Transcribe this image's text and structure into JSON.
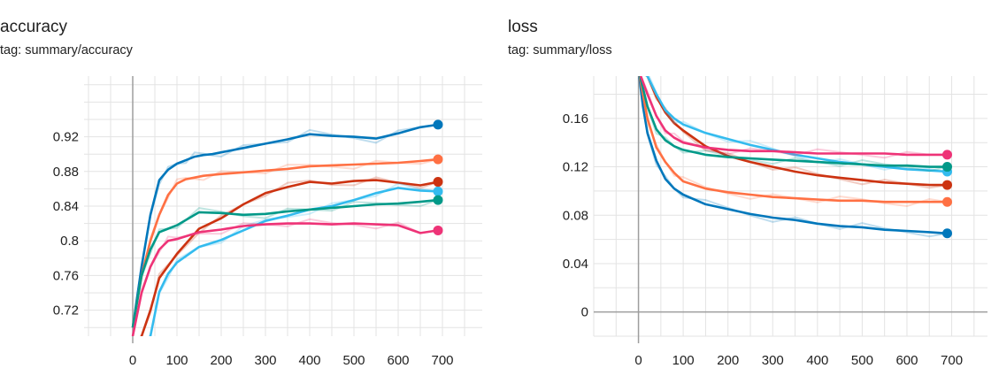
{
  "panels": {
    "accuracy": {
      "title": "accuracy",
      "tag": "tag: summary/accuracy"
    },
    "loss": {
      "title": "loss",
      "tag": "tag: summary/loss"
    }
  },
  "colors": {
    "grid": "#e3e3e3",
    "axis": "#9e9e9e",
    "text": "#212121"
  },
  "chart_data": [
    {
      "type": "line",
      "title": "accuracy",
      "xlim": [
        -110,
        790
      ],
      "ylim": [
        0.69,
        0.99
      ],
      "x_ticks": [
        0,
        100,
        200,
        300,
        400,
        500,
        600,
        700
      ],
      "y_ticks": [
        0.72,
        0.76,
        0.8,
        0.84,
        0.88,
        0.92
      ],
      "y_tick_labels": [
        "0.72",
        "0.76",
        "0.8",
        "0.84",
        "0.88",
        "0.92"
      ],
      "grid": true,
      "series": [
        {
          "color": "#0077bb",
          "x": [
            0,
            20,
            40,
            60,
            80,
            100,
            120,
            140,
            160,
            180,
            200,
            250,
            300,
            350,
            400,
            450,
            500,
            550,
            600,
            650,
            690
          ],
          "y": [
            0.7,
            0.77,
            0.83,
            0.87,
            0.882,
            0.889,
            0.893,
            0.897,
            0.899,
            0.9,
            0.902,
            0.907,
            0.912,
            0.917,
            0.923,
            0.921,
            0.92,
            0.918,
            0.924,
            0.931,
            0.934
          ]
        },
        {
          "color": "#ff7043",
          "x": [
            0,
            20,
            40,
            60,
            80,
            100,
            120,
            140,
            160,
            200,
            250,
            300,
            350,
            400,
            450,
            500,
            550,
            600,
            650,
            690
          ],
          "y": [
            0.7,
            0.76,
            0.8,
            0.83,
            0.853,
            0.866,
            0.871,
            0.873,
            0.875,
            0.877,
            0.879,
            0.881,
            0.883,
            0.886,
            0.887,
            0.888,
            0.889,
            0.89,
            0.892,
            0.894
          ]
        },
        {
          "color": "#cc3311",
          "x": [
            0,
            20,
            40,
            60,
            80,
            100,
            150,
            200,
            250,
            300,
            350,
            400,
            450,
            500,
            550,
            600,
            650,
            690
          ],
          "y": [
            0.68,
            0.69,
            0.72,
            0.757,
            0.771,
            0.785,
            0.814,
            0.826,
            0.842,
            0.855,
            0.862,
            0.868,
            0.866,
            0.869,
            0.87,
            0.867,
            0.864,
            0.868
          ]
        },
        {
          "color": "#33bbee",
          "x": [
            0,
            20,
            40,
            60,
            80,
            100,
            150,
            200,
            250,
            300,
            350,
            400,
            450,
            500,
            550,
            600,
            650,
            690
          ],
          "y": [
            0.66,
            0.67,
            0.69,
            0.741,
            0.762,
            0.775,
            0.793,
            0.801,
            0.812,
            0.823,
            0.829,
            0.836,
            0.84,
            0.847,
            0.855,
            0.861,
            0.858,
            0.857
          ]
        },
        {
          "color": "#009988",
          "x": [
            0,
            20,
            40,
            60,
            80,
            100,
            150,
            200,
            250,
            300,
            350,
            400,
            450,
            500,
            550,
            600,
            650,
            690
          ],
          "y": [
            0.7,
            0.76,
            0.79,
            0.81,
            0.814,
            0.818,
            0.833,
            0.832,
            0.83,
            0.831,
            0.834,
            0.836,
            0.838,
            0.84,
            0.842,
            0.843,
            0.845,
            0.847
          ]
        },
        {
          "color": "#ee3377",
          "x": [
            0,
            20,
            40,
            60,
            80,
            100,
            150,
            200,
            250,
            300,
            350,
            400,
            450,
            500,
            550,
            600,
            650,
            690
          ],
          "y": [
            0.69,
            0.74,
            0.77,
            0.79,
            0.8,
            0.802,
            0.81,
            0.813,
            0.817,
            0.819,
            0.82,
            0.82,
            0.819,
            0.82,
            0.819,
            0.818,
            0.809,
            0.812
          ]
        }
      ]
    },
    {
      "type": "line",
      "title": "loss",
      "xlim": [
        -100,
        780
      ],
      "ylim": [
        -0.02,
        0.195
      ],
      "x_ticks": [
        0,
        100,
        200,
        300,
        400,
        500,
        600,
        700
      ],
      "y_ticks": [
        0,
        0.04,
        0.08,
        0.12,
        0.16
      ],
      "y_tick_labels": [
        "0",
        "0.04",
        "0.08",
        "0.12",
        "0.16"
      ],
      "grid": true,
      "series": [
        {
          "color": "#0077bb",
          "x": [
            0,
            10,
            20,
            40,
            60,
            80,
            100,
            150,
            200,
            250,
            300,
            350,
            400,
            450,
            500,
            550,
            600,
            650,
            690
          ],
          "y": [
            0.2,
            0.17,
            0.148,
            0.125,
            0.11,
            0.102,
            0.097,
            0.089,
            0.085,
            0.081,
            0.078,
            0.076,
            0.073,
            0.071,
            0.07,
            0.068,
            0.067,
            0.066,
            0.065
          ]
        },
        {
          "color": "#ff7043",
          "x": [
            0,
            20,
            40,
            60,
            80,
            100,
            150,
            200,
            250,
            300,
            350,
            400,
            450,
            500,
            550,
            600,
            650,
            690
          ],
          "y": [
            0.2,
            0.16,
            0.136,
            0.124,
            0.115,
            0.108,
            0.102,
            0.099,
            0.097,
            0.095,
            0.094,
            0.093,
            0.092,
            0.092,
            0.091,
            0.091,
            0.091,
            0.091
          ]
        },
        {
          "color": "#cc3311",
          "x": [
            0,
            20,
            40,
            60,
            80,
            100,
            150,
            200,
            250,
            300,
            350,
            400,
            450,
            500,
            550,
            600,
            650,
            690
          ],
          "y": [
            0.2,
            0.195,
            0.178,
            0.165,
            0.156,
            0.15,
            0.137,
            0.129,
            0.124,
            0.12,
            0.116,
            0.113,
            0.111,
            0.109,
            0.107,
            0.106,
            0.105,
            0.105
          ]
        },
        {
          "color": "#33bbee",
          "x": [
            0,
            20,
            40,
            60,
            80,
            100,
            150,
            200,
            250,
            300,
            350,
            400,
            450,
            500,
            550,
            600,
            650,
            690
          ],
          "y": [
            0.2,
            0.195,
            0.18,
            0.167,
            0.16,
            0.155,
            0.148,
            0.143,
            0.138,
            0.134,
            0.13,
            0.127,
            0.124,
            0.122,
            0.12,
            0.118,
            0.117,
            0.116
          ]
        },
        {
          "color": "#009988",
          "x": [
            0,
            20,
            40,
            60,
            80,
            100,
            150,
            200,
            250,
            300,
            350,
            400,
            450,
            500,
            550,
            600,
            650,
            690
          ],
          "y": [
            0.2,
            0.17,
            0.151,
            0.142,
            0.137,
            0.134,
            0.13,
            0.128,
            0.127,
            0.126,
            0.125,
            0.124,
            0.123,
            0.122,
            0.121,
            0.121,
            0.12,
            0.12
          ]
        },
        {
          "color": "#ee3377",
          "x": [
            0,
            20,
            40,
            60,
            80,
            100,
            150,
            200,
            250,
            300,
            350,
            400,
            450,
            500,
            550,
            600,
            650,
            690
          ],
          "y": [
            0.2,
            0.18,
            0.162,
            0.15,
            0.144,
            0.14,
            0.136,
            0.134,
            0.133,
            0.133,
            0.132,
            0.131,
            0.131,
            0.131,
            0.131,
            0.13,
            0.13,
            0.13
          ]
        }
      ]
    }
  ]
}
